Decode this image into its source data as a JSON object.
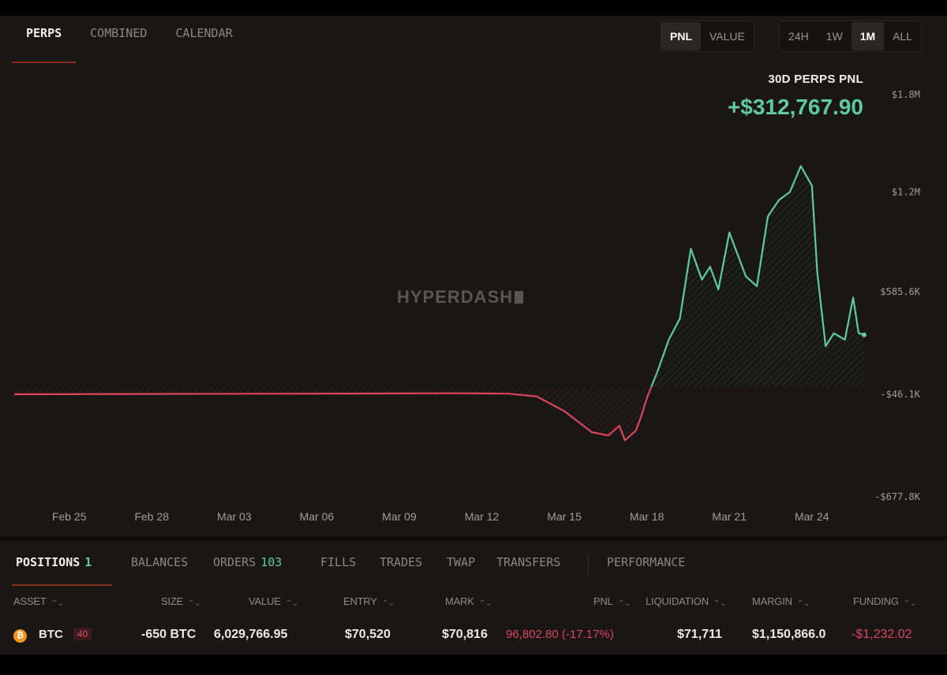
{
  "tabs": [
    "PERPS",
    "COMBINED",
    "CALENDAR"
  ],
  "mode_options": [
    "PNL",
    "VALUE"
  ],
  "mode_selected": "PNL",
  "range_options": [
    "24H",
    "1W",
    "1M",
    "ALL"
  ],
  "range_selected": "1M",
  "pnl_title": "30D PERPS PNL",
  "pnl_value": "+$312,767.90",
  "watermark": "HYPERDASH",
  "colors": {
    "positive": "#5fc9a0",
    "negative": "#d9465c",
    "accent": "#8a2a1f",
    "background": "#1a1616"
  },
  "chart_data": {
    "type": "area",
    "x_tick_labels": [
      "Feb 25",
      "Feb 28",
      "Mar 03",
      "Mar 06",
      "Mar 09",
      "Mar 12",
      "Mar 15",
      "Mar 18",
      "Mar 21",
      "Mar 24"
    ],
    "y_tick_labels": [
      "$1.8M",
      "$1.2M",
      "$585.6K",
      "-$46.1K",
      "-$677.8K"
    ],
    "y_ticks": [
      1800000,
      1200000,
      585600,
      -46100,
      -677800
    ],
    "ylim": [
      -677800,
      1800000
    ],
    "baseline": 0,
    "grid": false,
    "series": [
      {
        "x": [
          0,
          6,
          12,
          16,
          17,
          18,
          19,
          20,
          21,
          21.6,
          22,
          22.2,
          22.6,
          22.8,
          23,
          23.4,
          23.8,
          24.2,
          24.6,
          25,
          25.3,
          25.6,
          26,
          26.4,
          26.6,
          26.8,
          27,
          27.4,
          27.8,
          28.2,
          28.6,
          29,
          29.2,
          29.5,
          29.8,
          30.2,
          30.5,
          30.7,
          30.9
        ],
        "values": [
          -46100,
          -44000,
          -42000,
          -40000,
          -41000,
          -43000,
          -60000,
          -150000,
          -280000,
          -300000,
          -240000,
          -330000,
          -270000,
          -180000,
          -70000,
          100000,
          290000,
          420000,
          850000,
          660000,
          740000,
          600000,
          950000,
          770000,
          680000,
          650000,
          620000,
          1050000,
          1150000,
          1200000,
          1360000,
          1240000,
          700000,
          250000,
          330000,
          290000,
          550000,
          330000,
          320000
        ]
      }
    ]
  },
  "bottom_tabs": [
    {
      "label": "POSITIONS",
      "count": "1"
    },
    {
      "label": "BALANCES"
    },
    {
      "label": "ORDERS",
      "count": "103"
    },
    {
      "label": "FILLS"
    },
    {
      "label": "TRADES"
    },
    {
      "label": "TWAP"
    },
    {
      "label": "TRANSFERS"
    },
    {
      "label": "PERFORMANCE"
    }
  ],
  "columns": [
    "ASSET",
    "SIZE",
    "VALUE",
    "ENTRY",
    "MARK",
    "PNL",
    "LIQUIDATION",
    "MARGIN",
    "FUNDING"
  ],
  "sort_glyph": "⌃⌄",
  "position": {
    "asset": "BTC",
    "asset_icon": "₿",
    "leverage": "40",
    "size": "-650 BTC",
    "value": "6,029,766.95",
    "entry": "$70,520",
    "mark": "$70,816",
    "pnl": "96,802.80 (-17.17%)",
    "liquidation": "$71,711",
    "margin": "$1,150,866.0",
    "funding": "-$1,232.02"
  }
}
